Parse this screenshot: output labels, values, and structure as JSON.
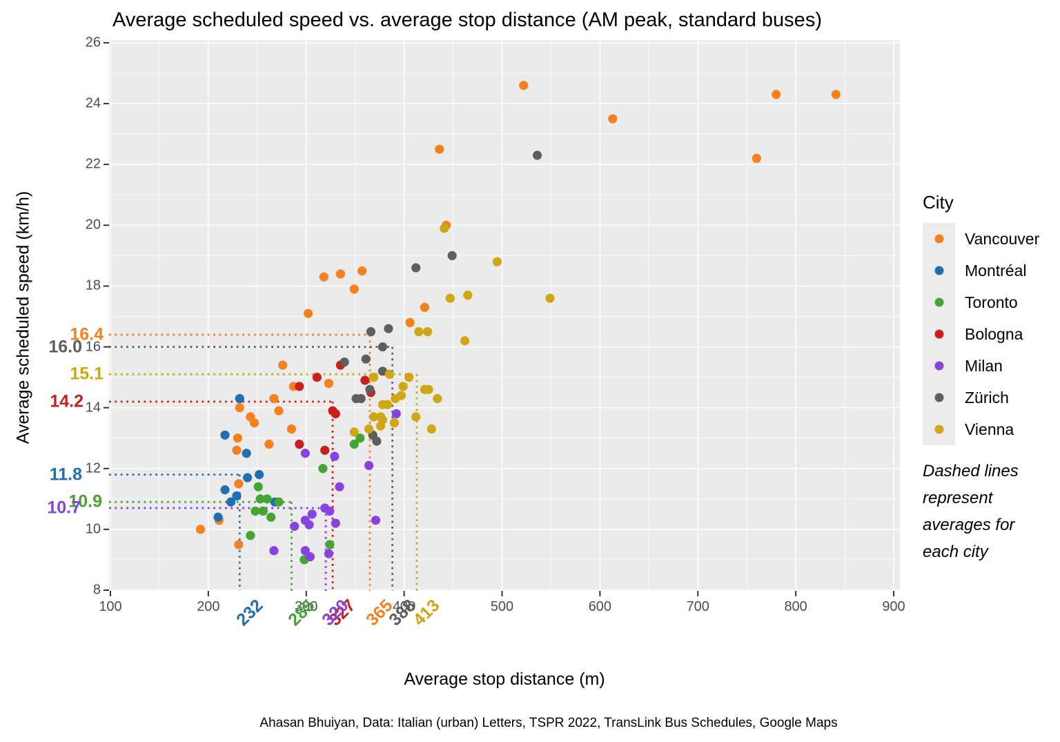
{
  "title": "Average scheduled speed vs. average stop distance (AM peak, standard buses)",
  "caption": "Ahasan Bhuiyan, Data: Italian (urban) Letters, TSPR 2022, TransLink Bus Schedules, Google Maps",
  "legend": {
    "title": "City",
    "note": "Dashed lines represent averages for each city"
  },
  "theme": {
    "panel_bg": "#EBEBEB",
    "grid_color": "#FFFFFF",
    "tick_text_color": "#4D4D4D",
    "tick_mark_color": "#333333",
    "legend_key_bg": "#ECECEC"
  },
  "chart_data": {
    "type": "scatter",
    "title": "Average scheduled speed vs. average stop distance (AM peak, standard buses)",
    "xlabel": "Average stop distance (m)",
    "ylabel": "Average scheduled speed (km/h)",
    "xlim": [
      100,
      900
    ],
    "ylim": [
      8,
      26
    ],
    "x_ticks": [
      100,
      200,
      300,
      400,
      500,
      600,
      700,
      800,
      900
    ],
    "y_ticks": [
      8,
      10,
      12,
      14,
      16,
      18,
      20,
      22,
      24,
      26
    ],
    "grid": true,
    "legend_position": "right",
    "annotation_note": "Dashed lines represent averages for each city",
    "series": [
      {
        "name": "Vancouver",
        "color": "#F4801F",
        "avg": {
          "speed": 16.4,
          "speed_label": "16.4",
          "distance": 365,
          "distance_label": "365"
        },
        "points": [
          [
            522,
            24.6
          ],
          [
            780,
            24.3
          ],
          [
            841,
            24.3
          ],
          [
            613,
            23.5
          ],
          [
            436,
            22.5
          ],
          [
            760,
            22.2
          ],
          [
            443,
            20.0
          ],
          [
            357,
            18.5
          ],
          [
            335,
            18.4
          ],
          [
            318,
            18.3
          ],
          [
            349,
            17.9
          ],
          [
            421,
            17.3
          ],
          [
            302,
            17.1
          ],
          [
            406,
            16.8
          ],
          [
            276,
            15.4
          ],
          [
            323,
            14.8
          ],
          [
            287,
            14.7
          ],
          [
            267,
            14.3
          ],
          [
            232,
            14.0
          ],
          [
            272,
            13.9
          ],
          [
            243,
            13.7
          ],
          [
            247,
            13.5
          ],
          [
            285,
            13.3
          ],
          [
            230,
            13.0
          ],
          [
            262,
            12.8
          ],
          [
            229,
            12.6
          ],
          [
            231,
            11.5
          ],
          [
            211,
            10.3
          ],
          [
            192,
            10.0
          ],
          [
            231,
            9.5
          ]
        ]
      },
      {
        "name": "Montréal",
        "color": "#1F6FB2",
        "avg": {
          "speed": 11.8,
          "speed_label": "11.8",
          "distance": 232,
          "distance_label": "232"
        },
        "points": [
          [
            232,
            14.3
          ],
          [
            217,
            13.1
          ],
          [
            239,
            12.5
          ],
          [
            252,
            11.8
          ],
          [
            240,
            11.7
          ],
          [
            217,
            11.3
          ],
          [
            229,
            11.1
          ],
          [
            223,
            10.9
          ],
          [
            268,
            10.9
          ],
          [
            210,
            10.4
          ]
        ]
      },
      {
        "name": "Toronto",
        "color": "#43A532",
        "avg": {
          "speed": 10.9,
          "speed_label": "10.9",
          "distance": 285,
          "distance_label": "285"
        },
        "points": [
          [
            355,
            13.0
          ],
          [
            349,
            12.8
          ],
          [
            317,
            12.0
          ],
          [
            251,
            11.4
          ],
          [
            253,
            11.0
          ],
          [
            260,
            11.0
          ],
          [
            272,
            10.9
          ],
          [
            248,
            10.6
          ],
          [
            256,
            10.6
          ],
          [
            264,
            10.4
          ],
          [
            243,
            9.8
          ],
          [
            324,
            9.5
          ],
          [
            298,
            9.0
          ]
        ]
      },
      {
        "name": "Bologna",
        "color": "#C9201C",
        "avg": {
          "speed": 14.2,
          "speed_label": "14.2",
          "distance": 327,
          "distance_label": "327"
        },
        "points": [
          [
            335,
            15.4
          ],
          [
            311,
            15.0
          ],
          [
            360,
            14.9
          ],
          [
            293,
            14.7
          ],
          [
            366,
            14.5
          ],
          [
            327,
            13.9
          ],
          [
            330,
            13.8
          ],
          [
            293,
            12.8
          ],
          [
            319,
            12.6
          ]
        ]
      },
      {
        "name": "Milan",
        "color": "#8842E0",
        "avg": {
          "speed": 10.7,
          "speed_label": "10.7",
          "distance": 320,
          "distance_label": "320"
        },
        "points": [
          [
            392,
            13.8
          ],
          [
            299,
            12.5
          ],
          [
            329,
            12.4
          ],
          [
            364,
            12.1
          ],
          [
            334,
            11.4
          ],
          [
            319,
            10.7
          ],
          [
            324,
            10.6
          ],
          [
            306,
            10.5
          ],
          [
            299,
            10.3
          ],
          [
            371,
            10.3
          ],
          [
            330,
            10.2
          ],
          [
            303,
            10.15
          ],
          [
            288,
            10.1
          ],
          [
            299,
            9.3
          ],
          [
            267,
            9.3
          ],
          [
            323,
            9.2
          ],
          [
            304,
            9.1
          ]
        ]
      },
      {
        "name": "Zürich",
        "color": "#5E5E5E",
        "avg": {
          "speed": 16.0,
          "speed_label": "16.0",
          "distance": 388,
          "distance_label": "388"
        },
        "points": [
          [
            536,
            22.3
          ],
          [
            449,
            19.0
          ],
          [
            412,
            18.6
          ],
          [
            384,
            16.6
          ],
          [
            366,
            16.5
          ],
          [
            378,
            16.0
          ],
          [
            361,
            15.6
          ],
          [
            339,
            15.5
          ],
          [
            378,
            15.2
          ],
          [
            365,
            14.6
          ],
          [
            351,
            14.3
          ],
          [
            356,
            14.3
          ],
          [
            368,
            13.1
          ],
          [
            372,
            12.9
          ]
        ]
      },
      {
        "name": "Vienna",
        "color": "#CFA715",
        "avg": {
          "speed": 15.1,
          "speed_label": "15.1",
          "distance": 413,
          "distance_label": "413"
        },
        "points": [
          [
            441,
            19.9
          ],
          [
            495,
            18.8
          ],
          [
            465,
            17.7
          ],
          [
            447,
            17.6
          ],
          [
            549,
            17.6
          ],
          [
            415,
            16.5
          ],
          [
            424,
            16.5
          ],
          [
            462,
            16.2
          ],
          [
            385,
            15.1
          ],
          [
            369,
            15.0
          ],
          [
            405,
            15.0
          ],
          [
            399,
            14.7
          ],
          [
            421,
            14.6
          ],
          [
            425,
            14.6
          ],
          [
            397,
            14.4
          ],
          [
            434,
            14.3
          ],
          [
            391,
            14.3
          ],
          [
            378,
            14.1
          ],
          [
            383,
            14.1
          ],
          [
            412,
            13.7
          ],
          [
            369,
            13.7
          ],
          [
            376,
            13.7
          ],
          [
            378,
            13.6
          ],
          [
            390,
            13.5
          ],
          [
            376,
            13.4
          ],
          [
            364,
            13.3
          ],
          [
            428,
            13.3
          ],
          [
            349,
            13.2
          ]
        ]
      }
    ]
  }
}
